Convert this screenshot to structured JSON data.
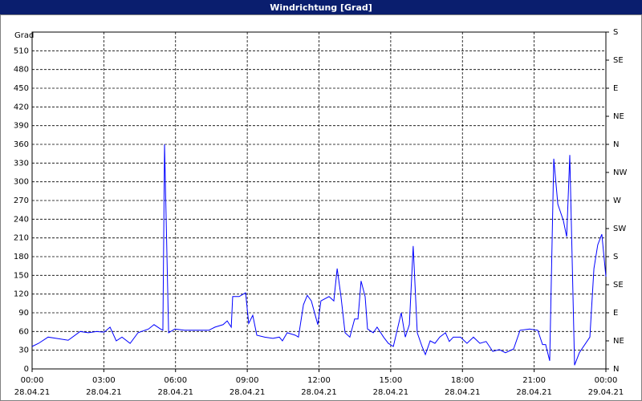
{
  "chart_data": {
    "type": "line",
    "title": "Windrichtung [Grad]",
    "y_label": "Grad",
    "x": [
      0,
      0.27,
      0.67,
      1.01,
      1.51,
      2.01,
      2.35,
      2.69,
      3.02,
      3.26,
      3.52,
      3.76,
      4.1,
      4.43,
      4.87,
      5.1,
      5.37,
      5.47,
      5.54,
      5.71,
      5.97,
      6.38,
      6.88,
      7.39,
      7.65,
      7.99,
      8.16,
      8.33,
      8.39,
      8.66,
      8.93,
      9.06,
      9.23,
      9.4,
      9.73,
      10.07,
      10.34,
      10.47,
      10.67,
      11.01,
      11.14,
      11.35,
      11.51,
      11.68,
      11.95,
      12.08,
      12.42,
      12.62,
      12.76,
      12.92,
      13.09,
      13.29,
      13.49,
      13.63,
      13.76,
      13.93,
      14.03,
      14.27,
      14.43,
      14.7,
      14.9,
      15.11,
      15.44,
      15.61,
      15.78,
      15.94,
      16.11,
      16.31,
      16.45,
      16.65,
      16.85,
      17.05,
      17.29,
      17.45,
      17.62,
      17.92,
      18.19,
      18.46,
      18.73,
      18.99,
      19.27,
      19.54,
      19.8,
      20.14,
      20.41,
      20.81,
      21.15,
      21.35,
      21.48,
      21.65,
      21.82,
      21.99,
      22.22,
      22.36,
      22.49,
      22.69,
      22.89,
      23.33,
      23.5,
      23.66,
      23.83,
      24.0
    ],
    "series": [
      {
        "color": "#0000ff",
        "values": [
          36,
          41,
          51,
          49,
          46,
          60,
          58,
          60,
          59,
          67,
          45,
          51,
          41,
          58,
          64,
          71,
          64,
          62,
          360,
          58,
          64,
          62,
          62,
          62,
          67,
          71,
          77,
          67,
          116,
          116,
          122,
          73,
          86,
          54,
          51,
          49,
          51,
          45,
          58,
          54,
          51,
          103,
          118,
          109,
          71,
          109,
          116,
          109,
          161,
          116,
          58,
          51,
          80,
          80,
          141,
          116,
          64,
          58,
          67,
          51,
          41,
          36,
          90,
          51,
          71,
          197,
          58,
          36,
          23,
          45,
          41,
          51,
          58,
          44,
          51,
          51,
          41,
          51,
          41,
          44,
          28,
          31,
          26,
          32,
          62,
          64,
          62,
          39,
          39,
          13,
          337,
          264,
          238,
          212,
          343,
          6,
          26,
          51,
          161,
          199,
          216,
          148
        ]
      }
    ],
    "xlim": [
      0,
      24
    ],
    "xticks": [
      {
        "value": 0,
        "label": "00:00"
      },
      {
        "value": 3,
        "label": "03:00"
      },
      {
        "value": 6,
        "label": "06:00"
      },
      {
        "value": 9,
        "label": "09:00"
      },
      {
        "value": 12,
        "label": "12:00"
      },
      {
        "value": 15,
        "label": "15:00"
      },
      {
        "value": 18,
        "label": "18:00"
      },
      {
        "value": 21,
        "label": "21:00"
      },
      {
        "value": 24,
        "label": "00:00"
      }
    ],
    "xtick_dates": [
      "28.04.21",
      "28.04.21",
      "28.04.21",
      "28.04.21",
      "28.04.21",
      "28.04.21",
      "28.04.21",
      "28.04.21",
      "29.04.21"
    ],
    "ylim": [
      0,
      540
    ],
    "yticks": [
      0,
      30,
      60,
      90,
      120,
      150,
      180,
      210,
      240,
      270,
      300,
      330,
      360,
      390,
      420,
      450,
      480,
      510
    ],
    "y2lim": [
      0,
      540
    ],
    "y2ticks": [
      {
        "value": 0,
        "label": "N"
      },
      {
        "value": 45,
        "label": "NE"
      },
      {
        "value": 90,
        "label": "E"
      },
      {
        "value": 135,
        "label": "SE"
      },
      {
        "value": 180,
        "label": "S"
      },
      {
        "value": 225,
        "label": "SW"
      },
      {
        "value": 270,
        "label": "W"
      },
      {
        "value": 315,
        "label": "NW"
      },
      {
        "value": 360,
        "label": "N"
      },
      {
        "value": 405,
        "label": "NE"
      },
      {
        "value": 450,
        "label": "E"
      },
      {
        "value": 495,
        "label": "SE"
      },
      {
        "value": 540,
        "label": "S"
      }
    ],
    "grid": true
  }
}
